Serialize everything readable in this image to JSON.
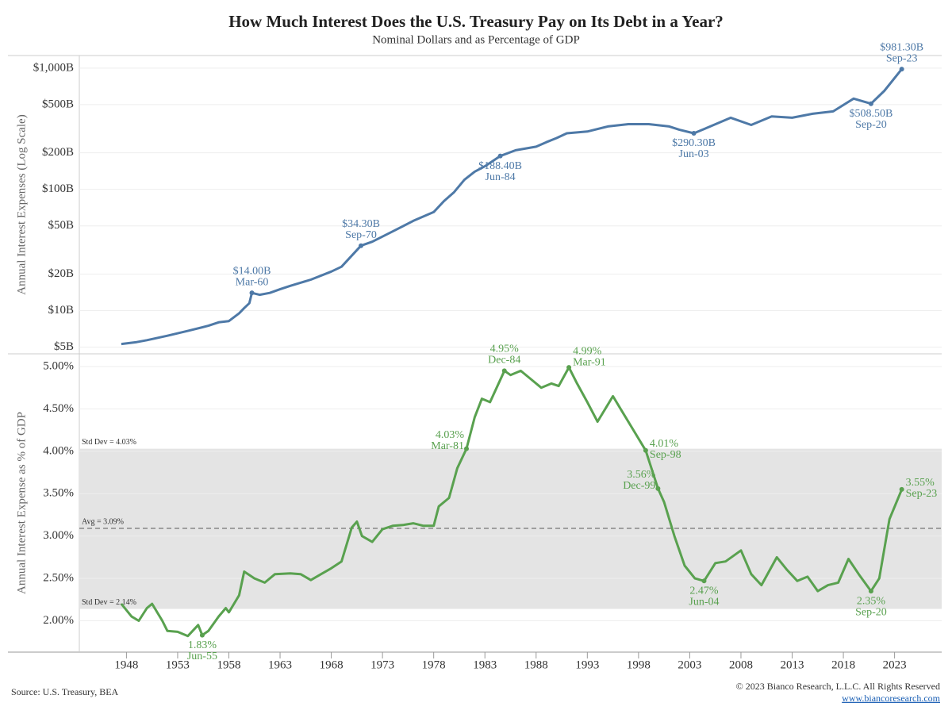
{
  "header": {
    "title": "How Much Interest Does the U.S. Treasury Pay on Its Debt in a Year?",
    "subtitle": "Nominal Dollars and as Percentage of GDP"
  },
  "chart_data": [
    {
      "type": "line",
      "y_label": "Annual Interest Expenses (Log Scale)",
      "log_scale": true,
      "color": "#4e79a7",
      "xlim": [
        1943.4,
        2027.6
      ],
      "ylim": [
        4.4,
        1270
      ],
      "yticks": [
        {
          "value": 5,
          "label": "$5B"
        },
        {
          "value": 10,
          "label": "$10B"
        },
        {
          "value": 20,
          "label": "$20B"
        },
        {
          "value": 50,
          "label": "$50B"
        },
        {
          "value": 100,
          "label": "$100B"
        },
        {
          "value": 200,
          "label": "$200B"
        },
        {
          "value": 500,
          "label": "$500B"
        },
        {
          "value": 1000,
          "label": "$1,000B"
        }
      ],
      "grid": true,
      "x": [
        1947.5,
        1949,
        1950,
        1952,
        1954,
        1956,
        1957,
        1958,
        1959,
        1959.5,
        1960,
        1960.25,
        1961,
        1962,
        1963,
        1964,
        1966,
        1968,
        1969,
        1970.9,
        1972,
        1974,
        1976,
        1978,
        1979,
        1980,
        1981,
        1982,
        1983,
        1984.5,
        1986,
        1988,
        1989,
        1990,
        1991,
        1993,
        1995,
        1997,
        1999,
        2001,
        2002,
        2003.4,
        2005,
        2007,
        2009,
        2011,
        2013,
        2015,
        2017,
        2019,
        2020.7,
        2022,
        2023.7
      ],
      "values": [
        5.3,
        5.5,
        5.7,
        6.2,
        6.8,
        7.5,
        8.0,
        8.2,
        9.5,
        10.5,
        11.5,
        14.0,
        13.5,
        14,
        15,
        16,
        18,
        21,
        23,
        34.3,
        37,
        45,
        55,
        65,
        80,
        95,
        120,
        140,
        155,
        188.4,
        210,
        225,
        245,
        265,
        290,
        300,
        330,
        345,
        345,
        330,
        310,
        290.3,
        330,
        390,
        340,
        400,
        390,
        420,
        440,
        560,
        508.5,
        650,
        981.3
      ],
      "annotations": [
        {
          "x": 1960.25,
          "value": 14.0,
          "value_label": "$14.00B",
          "date_label": "Mar-60",
          "position": "above"
        },
        {
          "x": 1970.9,
          "value": 34.3,
          "value_label": "$34.30B",
          "date_label": "Sep-70",
          "position": "above"
        },
        {
          "x": 1984.5,
          "value": 188.4,
          "value_label": "$188.40B",
          "date_label": "Jun-84",
          "position": "below"
        },
        {
          "x": 2003.4,
          "value": 290.3,
          "value_label": "$290.30B",
          "date_label": "Jun-03",
          "position": "below"
        },
        {
          "x": 2020.7,
          "value": 508.5,
          "value_label": "$508.50B",
          "date_label": "Sep-20",
          "position": "below"
        },
        {
          "x": 2023.7,
          "value": 981.3,
          "value_label": "$981.30B",
          "date_label": "Sep-23",
          "position": "above"
        }
      ]
    },
    {
      "type": "line",
      "y_label": "Annual Interest Expense as % of GDP",
      "log_scale": false,
      "color": "#59a14f",
      "xlim": [
        1943.4,
        2027.6
      ],
      "ylim": [
        1.63,
        5.15
      ],
      "xticks": [
        1948,
        1953,
        1958,
        1963,
        1968,
        1973,
        1978,
        1983,
        1988,
        1993,
        1998,
        2003,
        2008,
        2013,
        2018,
        2023
      ],
      "yticks": [
        {
          "value": 2,
          "label": "2.00%"
        },
        {
          "value": 2.5,
          "label": "2.50%"
        },
        {
          "value": 3,
          "label": "3.00%"
        },
        {
          "value": 3.5,
          "label": "3.50%"
        },
        {
          "value": 4,
          "label": "4.00%"
        },
        {
          "value": 4.5,
          "label": "4.50%"
        },
        {
          "value": 5,
          "label": "5.00%"
        }
      ],
      "grid": true,
      "band": {
        "upper": 4.03,
        "upper_label": "Std Dev = 4.03%",
        "lower": 2.14,
        "lower_label": "Std Dev = 2.14%",
        "color": "#e4e4e4"
      },
      "average": {
        "value": 3.09,
        "label": "Avg = 3.09%"
      },
      "x": [
        1947.5,
        1948.5,
        1949.2,
        1950,
        1950.5,
        1951.5,
        1952,
        1953,
        1954,
        1955,
        1955.4,
        1956,
        1957,
        1957.7,
        1958,
        1959,
        1959.5,
        1960.5,
        1961.5,
        1962.5,
        1964,
        1965,
        1966,
        1967,
        1968,
        1969,
        1970,
        1970.5,
        1971,
        1972,
        1973,
        1974,
        1975,
        1976,
        1977,
        1978,
        1978.5,
        1979.5,
        1980.3,
        1981.2,
        1982,
        1982.7,
        1983.5,
        1984.9,
        1985.5,
        1986.5,
        1987.5,
        1988.5,
        1989.5,
        1990.2,
        1991.2,
        1992,
        1993,
        1994,
        1995.5,
        1996.5,
        1997.5,
        1998.7,
        1999.9,
        2000.5,
        2001.5,
        2002.5,
        2003.5,
        2004.4,
        2005.5,
        2006.5,
        2008,
        2009,
        2010,
        2011.5,
        2012.5,
        2013.5,
        2014.5,
        2015.5,
        2016.5,
        2017.5,
        2018.5,
        2019.5,
        2020.7,
        2021.5,
        2022.5,
        2023.7
      ],
      "values": [
        2.2,
        2.05,
        2.0,
        2.15,
        2.2,
        2.0,
        1.88,
        1.87,
        1.82,
        1.95,
        1.83,
        1.88,
        2.05,
        2.15,
        2.1,
        2.3,
        2.58,
        2.5,
        2.45,
        2.55,
        2.56,
        2.55,
        2.48,
        2.55,
        2.62,
        2.7,
        3.1,
        3.17,
        3.0,
        2.93,
        3.08,
        3.12,
        3.13,
        3.15,
        3.12,
        3.12,
        3.35,
        3.45,
        3.8,
        4.03,
        4.4,
        4.62,
        4.58,
        4.95,
        4.9,
        4.95,
        4.85,
        4.75,
        4.8,
        4.77,
        4.99,
        4.8,
        4.58,
        4.35,
        4.65,
        4.45,
        4.25,
        4.01,
        3.56,
        3.4,
        3.0,
        2.65,
        2.5,
        2.47,
        2.68,
        2.7,
        2.83,
        2.55,
        2.42,
        2.75,
        2.6,
        2.47,
        2.52,
        2.35,
        2.42,
        2.45,
        2.73,
        2.55,
        2.35,
        2.5,
        3.2,
        3.55
      ],
      "annotations": [
        {
          "x": 1955.4,
          "value": 1.83,
          "value_label": "1.83%",
          "date_label": "Jun-55",
          "position": "below"
        },
        {
          "x": 1981.2,
          "value": 4.03,
          "value_label": "4.03%",
          "date_label": "Mar-81",
          "position": "left"
        },
        {
          "x": 1984.9,
          "value": 4.95,
          "value_label": "4.95%",
          "date_label": "Dec-84",
          "position": "above"
        },
        {
          "x": 1991.2,
          "value": 4.99,
          "value_label": "4.99%",
          "date_label": "Mar-91",
          "position": "aboveright"
        },
        {
          "x": 1998.7,
          "value": 4.01,
          "value_label": "4.01%",
          "date_label": "Sep-98",
          "position": "right"
        },
        {
          "x": 1999.9,
          "value": 3.56,
          "value_label": "3.56%",
          "date_label": "Dec-99",
          "position": "left"
        },
        {
          "x": 2004.4,
          "value": 2.47,
          "value_label": "2.47%",
          "date_label": "Jun-04",
          "position": "below"
        },
        {
          "x": 2020.7,
          "value": 2.35,
          "value_label": "2.35%",
          "date_label": "Sep-20",
          "position": "below"
        },
        {
          "x": 2023.7,
          "value": 3.55,
          "value_label": "3.55%",
          "date_label": "Sep-23",
          "position": "right"
        }
      ]
    }
  ],
  "footer": {
    "source": "Source: U.S. Treasury, BEA",
    "copyright": "© 2023 Bianco Research, L.L.C. All Rights Reserved",
    "website": "www.biancoresearch.com"
  }
}
